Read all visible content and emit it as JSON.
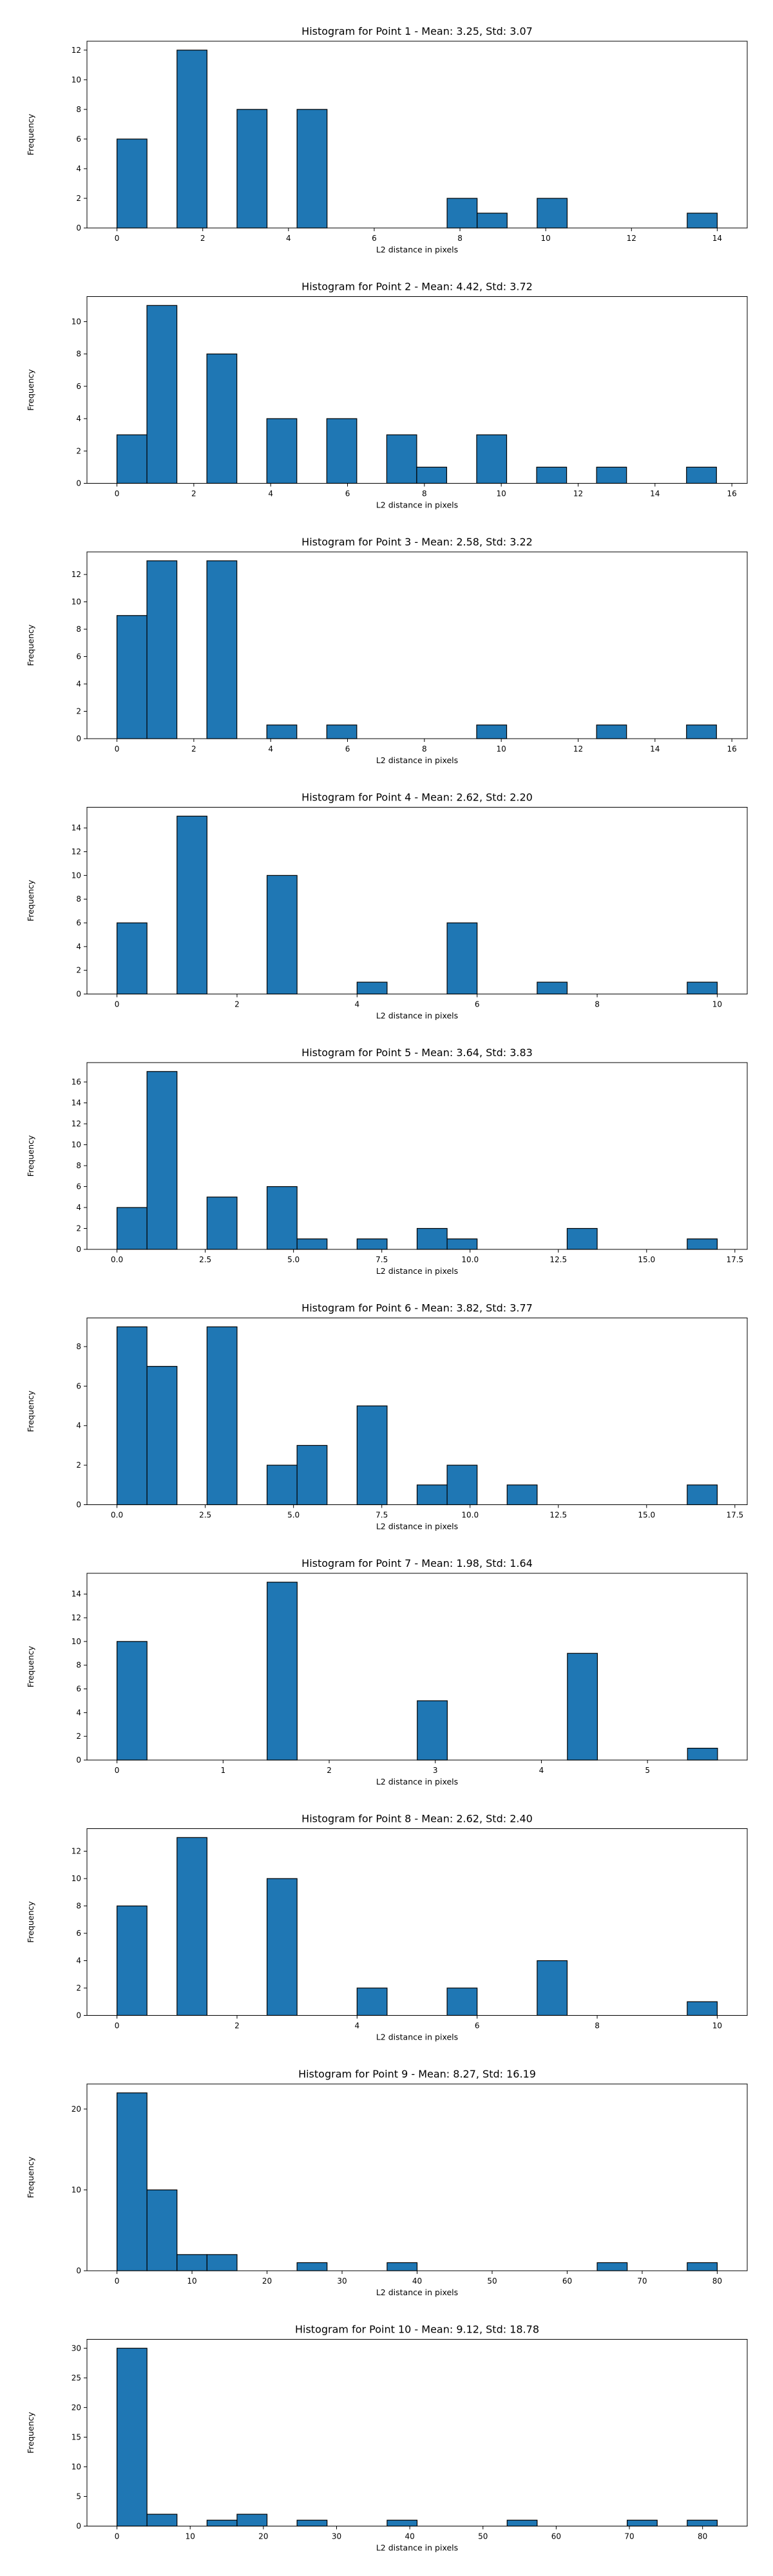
{
  "style": {
    "bar_color": "#1f77b4",
    "edge_color": "#000000"
  },
  "chart_data": [
    {
      "type": "bar",
      "title": "Histogram for Point 1 - Mean: 3.25, Std: 3.07",
      "xlabel": "L2 distance in pixels",
      "ylabel": "Frequency",
      "xlim": [
        -0.7,
        14.7
      ],
      "ylim": [
        0,
        12.6
      ],
      "xticks": [
        0,
        2,
        4,
        6,
        8,
        10,
        12,
        14
      ],
      "yticks": [
        0,
        2,
        4,
        6,
        8,
        10,
        12
      ],
      "bins": [
        0.0,
        0.7,
        1.4,
        2.1,
        2.8,
        3.5,
        4.2,
        4.9,
        5.6,
        6.3,
        7.0,
        7.7,
        8.4,
        9.1,
        9.8,
        10.5,
        11.2,
        11.9,
        12.6,
        13.3,
        14.0
      ],
      "counts": [
        6,
        0,
        12,
        0,
        8,
        0,
        8,
        0,
        0,
        0,
        0,
        2,
        1,
        0,
        2,
        0,
        0,
        0,
        0,
        1
      ]
    },
    {
      "type": "bar",
      "title": "Histogram for Point 2 - Mean: 4.42, Std: 3.72",
      "xlabel": "L2 distance in pixels",
      "ylabel": "Frequency",
      "xlim": [
        -0.78,
        16.4
      ],
      "ylim": [
        0,
        11.55
      ],
      "xticks": [
        0,
        2,
        4,
        6,
        8,
        10,
        12,
        14,
        16
      ],
      "yticks": [
        0,
        2,
        4,
        6,
        8,
        10
      ],
      "bins": [
        0.0,
        0.78,
        1.56,
        2.34,
        3.12,
        3.9,
        4.68,
        5.46,
        6.24,
        7.02,
        7.8,
        8.58,
        9.36,
        10.14,
        10.92,
        11.7,
        12.48,
        13.26,
        14.04,
        14.82,
        15.6
      ],
      "counts": [
        3,
        11,
        0,
        8,
        0,
        4,
        0,
        4,
        0,
        3,
        1,
        0,
        3,
        0,
        1,
        0,
        1,
        0,
        0,
        1
      ]
    },
    {
      "type": "bar",
      "title": "Histogram for Point 3 - Mean: 2.58, Std: 3.22",
      "xlabel": "L2 distance in pixels",
      "ylabel": "Frequency",
      "xlim": [
        -0.78,
        16.4
      ],
      "ylim": [
        0,
        13.65
      ],
      "xticks": [
        0,
        2,
        4,
        6,
        8,
        10,
        12,
        14,
        16
      ],
      "yticks": [
        0,
        2,
        4,
        6,
        8,
        10,
        12
      ],
      "bins": [
        0.0,
        0.78,
        1.56,
        2.34,
        3.12,
        3.9,
        4.68,
        5.46,
        6.24,
        7.02,
        7.8,
        8.58,
        9.36,
        10.14,
        10.92,
        11.7,
        12.48,
        13.26,
        14.04,
        14.82,
        15.6
      ],
      "counts": [
        9,
        13,
        0,
        13,
        0,
        1,
        0,
        1,
        0,
        0,
        0,
        0,
        1,
        0,
        0,
        0,
        1,
        0,
        0,
        1
      ]
    },
    {
      "type": "bar",
      "title": "Histogram for Point 4 - Mean: 2.62, Std: 2.20",
      "xlabel": "L2 distance in pixels",
      "ylabel": "Frequency",
      "xlim": [
        -0.5,
        10.5
      ],
      "ylim": [
        0,
        15.75
      ],
      "xticks": [
        0,
        2,
        4,
        6,
        8,
        10
      ],
      "yticks": [
        0,
        2,
        4,
        6,
        8,
        10,
        12,
        14
      ],
      "bins": [
        0.0,
        0.5,
        1.0,
        1.5,
        2.0,
        2.5,
        3.0,
        3.5,
        4.0,
        4.5,
        5.0,
        5.5,
        6.0,
        6.5,
        7.0,
        7.5,
        8.0,
        8.5,
        9.0,
        9.5,
        10.0
      ],
      "counts": [
        6,
        0,
        15,
        0,
        0,
        10,
        0,
        0,
        1,
        0,
        0,
        6,
        0,
        0,
        1,
        0,
        0,
        0,
        0,
        1
      ]
    },
    {
      "type": "bar",
      "title": "Histogram for Point 5 - Mean: 3.64, Std: 3.83",
      "xlabel": "L2 distance in pixels",
      "ylabel": "Frequency",
      "xlim": [
        -0.85,
        17.85
      ],
      "ylim": [
        0,
        17.85
      ],
      "xticks": [
        0.0,
        2.5,
        5.0,
        7.5,
        10.0,
        12.5,
        15.0,
        17.5
      ],
      "yticks": [
        0,
        2,
        4,
        6,
        8,
        10,
        12,
        14,
        16
      ],
      "bins": [
        0.0,
        0.85,
        1.7,
        2.55,
        3.4,
        4.25,
        5.1,
        5.95,
        6.8,
        7.65,
        8.5,
        9.35,
        10.2,
        11.05,
        11.9,
        12.75,
        13.6,
        14.45,
        15.3,
        16.15,
        17.0
      ],
      "counts": [
        4,
        17,
        0,
        5,
        0,
        6,
        1,
        0,
        1,
        0,
        2,
        1,
        0,
        0,
        0,
        2,
        0,
        0,
        0,
        1
      ]
    },
    {
      "type": "bar",
      "title": "Histogram for Point 6 - Mean: 3.82, Std: 3.77",
      "xlabel": "L2 distance in pixels",
      "ylabel": "Frequency",
      "xlim": [
        -0.85,
        17.85
      ],
      "ylim": [
        0,
        9.45
      ],
      "xticks": [
        0.0,
        2.5,
        5.0,
        7.5,
        10.0,
        12.5,
        15.0,
        17.5
      ],
      "yticks": [
        0,
        2,
        4,
        6,
        8
      ],
      "bins": [
        0.0,
        0.85,
        1.7,
        2.55,
        3.4,
        4.25,
        5.1,
        5.95,
        6.8,
        7.65,
        8.5,
        9.35,
        10.2,
        11.05,
        11.9,
        12.75,
        13.6,
        14.45,
        15.3,
        16.15,
        17.0
      ],
      "counts": [
        9,
        7,
        0,
        9,
        0,
        2,
        3,
        0,
        5,
        0,
        1,
        2,
        0,
        1,
        0,
        0,
        0,
        0,
        0,
        1
      ]
    },
    {
      "type": "bar",
      "title": "Histogram for Point 7 - Mean: 1.98, Std: 1.64",
      "xlabel": "L2 distance in pixels",
      "ylabel": "Frequency",
      "xlim": [
        -0.283,
        5.94
      ],
      "ylim": [
        0,
        15.75
      ],
      "xticks": [
        0,
        1,
        2,
        3,
        4,
        5
      ],
      "yticks": [
        0,
        2,
        4,
        6,
        8,
        10,
        12,
        14
      ],
      "bins": [
        0.0,
        0.283,
        0.566,
        0.849,
        1.132,
        1.415,
        1.698,
        1.981,
        2.264,
        2.547,
        2.83,
        3.113,
        3.396,
        3.679,
        3.962,
        4.245,
        4.528,
        4.811,
        5.094,
        5.377,
        5.66
      ],
      "counts": [
        10,
        0,
        0,
        0,
        0,
        15,
        0,
        0,
        0,
        0,
        5,
        0,
        0,
        0,
        0,
        9,
        0,
        0,
        0,
        1
      ]
    },
    {
      "type": "bar",
      "title": "Histogram for Point 8 - Mean: 2.62, Std: 2.40",
      "xlabel": "L2 distance in pixels",
      "ylabel": "Frequency",
      "xlim": [
        -0.5,
        10.5
      ],
      "ylim": [
        0,
        13.65
      ],
      "xticks": [
        0,
        2,
        4,
        6,
        8,
        10
      ],
      "yticks": [
        0,
        2,
        4,
        6,
        8,
        10,
        12
      ],
      "bins": [
        0.0,
        0.5,
        1.0,
        1.5,
        2.0,
        2.5,
        3.0,
        3.5,
        4.0,
        4.5,
        5.0,
        5.5,
        6.0,
        6.5,
        7.0,
        7.5,
        8.0,
        8.5,
        9.0,
        9.5,
        10.0
      ],
      "counts": [
        8,
        0,
        13,
        0,
        0,
        10,
        0,
        0,
        2,
        0,
        0,
        2,
        0,
        0,
        4,
        0,
        0,
        0,
        0,
        1
      ]
    },
    {
      "type": "bar",
      "title": "Histogram for Point 9 - Mean: 8.27, Std: 16.19",
      "xlabel": "L2 distance in pixels",
      "ylabel": "Frequency",
      "xlim": [
        -4.0,
        84.0
      ],
      "ylim": [
        0,
        23.1
      ],
      "xticks": [
        0,
        10,
        20,
        30,
        40,
        50,
        60,
        70,
        80
      ],
      "yticks": [
        0,
        10,
        20
      ],
      "bins": [
        0,
        4,
        8,
        12,
        16,
        20,
        24,
        28,
        32,
        36,
        40,
        44,
        48,
        52,
        56,
        60,
        64,
        68,
        72,
        76,
        80
      ],
      "counts": [
        22,
        10,
        2,
        2,
        0,
        0,
        1,
        0,
        0,
        1,
        0,
        0,
        0,
        0,
        0,
        0,
        1,
        0,
        0,
        1
      ]
    },
    {
      "type": "bar",
      "title": "Histogram for Point 10 - Mean: 9.12, Std: 18.78",
      "xlabel": "L2 distance in pixels",
      "ylabel": "Frequency",
      "xlim": [
        -4.1,
        86.1
      ],
      "ylim": [
        0,
        31.5
      ],
      "xticks": [
        0,
        10,
        20,
        30,
        40,
        50,
        60,
        70,
        80
      ],
      "yticks": [
        0,
        5,
        10,
        15,
        20,
        25,
        30
      ],
      "bins": [
        0,
        4.1,
        8.2,
        12.3,
        16.4,
        20.5,
        24.6,
        28.7,
        32.8,
        36.9,
        41.0,
        45.1,
        49.2,
        53.3,
        57.4,
        61.5,
        65.6,
        69.7,
        73.8,
        77.9,
        82.0
      ],
      "counts": [
        30,
        2,
        0,
        1,
        2,
        0,
        1,
        0,
        0,
        1,
        0,
        0,
        0,
        1,
        0,
        0,
        0,
        1,
        0,
        1
      ]
    }
  ]
}
